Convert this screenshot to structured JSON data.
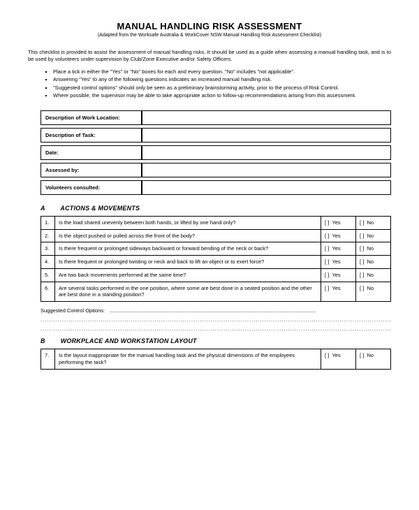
{
  "title": "MANUAL HANDLING RISK ASSESSMENT",
  "subtitle": "(Adapted from the Worksafe Australia & WorkCover NSW Manual Handling Risk Assessment Checklist)",
  "intro": "This checklist is provided to assist the assessment of manual handling risks. It should be used as a guide when assessing a manual handling task, and is to be used by volunteers under supervision by Club/Zone Executive and/or Safety Officers.",
  "bullets": [
    "Place a tick in either the \"Yes\" or \"No\" boxes for each and every question. \"No\" includes \"not applicable\".",
    "Answering \"Yes\" to any of the following questions indicates an increased manual handling risk.",
    "\"Suggested control options\" should only be seen as a preliminary brainstorming activity, prior to the process of Risk Control.",
    "Where possible, the supervisor may be able to take appropriate action to follow-up recommendations arising from this assessment."
  ],
  "info_rows": [
    "Description of Work Location:",
    "Description of Task:",
    "Date:",
    "Assessed by:",
    "Volunteers consulted:"
  ],
  "section_a": {
    "letter": "A",
    "title": "ACTIONS & MOVEMENTS"
  },
  "qa": [
    {
      "n": "1.",
      "q": "Is the load shared unevenly between both hands, or lifted by one hand only?"
    },
    {
      "n": "2.",
      "q": "Is the object pushed or pulled across the front of the body?"
    },
    {
      "n": "3.",
      "q": "Is there frequent or prolonged sideways backward or forward bending of the neck or back?"
    },
    {
      "n": "4.",
      "q": "Is there frequent or prolonged twisting or neck and back to lift an object or to exert force?"
    },
    {
      "n": "5.",
      "q": "Are two back movements performed at the same time?"
    },
    {
      "n": "6.",
      "q": "Are several tasks performed in the one position, where some are best done in a seated position and the other are best done in a standing position?"
    }
  ],
  "sco_label": "Suggested Control Options:",
  "section_b": {
    "letter": "B",
    "title": "WORKPLACE AND WORKSTATION LAYOUT"
  },
  "qb": [
    {
      "n": "7.",
      "q": "Is the layout inappropriate for the manual handling task and the physical dimensions of the employees performing the task?"
    }
  ],
  "yes": "Yes",
  "no": "No",
  "box": "[  ]"
}
